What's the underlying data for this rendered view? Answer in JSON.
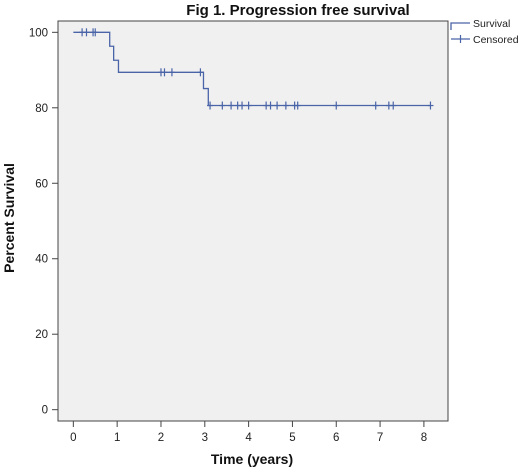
{
  "chart_data": {
    "type": "line",
    "title": "Fig 1. Progression free survival",
    "xlabel": "Time (years)",
    "ylabel": "Percent Survival",
    "xlim": [
      -0.35,
      8.55
    ],
    "ylim": [
      -3,
      103
    ],
    "xticks": [
      "0",
      "1",
      "2",
      "3",
      "4",
      "5",
      "6",
      "7",
      "8"
    ],
    "yticks": [
      "0",
      "20",
      "40",
      "60",
      "80",
      "100"
    ],
    "grid": false,
    "legend": {
      "position": "top-right, outside plot",
      "entries": [
        "Survival",
        "Censored"
      ]
    },
    "colors": {
      "series": "#4a64a8",
      "plot_background": "#f0f0f0",
      "axis": "#444444"
    },
    "series": [
      {
        "name": "Survival",
        "step": [
          [
            0,
            100
          ],
          [
            0.83,
            100
          ],
          [
            0.83,
            96.3
          ],
          [
            0.92,
            96.3
          ],
          [
            0.92,
            92.6
          ],
          [
            1.03,
            92.6
          ],
          [
            1.03,
            89.4
          ],
          [
            2.97,
            89.4
          ],
          [
            2.97,
            85.1
          ],
          [
            3.08,
            85.1
          ],
          [
            3.08,
            80.6
          ],
          [
            8.15,
            80.6
          ]
        ]
      },
      {
        "name": "Censored",
        "points": [
          [
            0.2,
            100
          ],
          [
            0.3,
            100
          ],
          [
            0.45,
            100
          ],
          [
            0.5,
            100
          ],
          [
            2.0,
            89.4
          ],
          [
            2.08,
            89.4
          ],
          [
            2.25,
            89.4
          ],
          [
            2.9,
            89.4
          ],
          [
            3.12,
            80.6
          ],
          [
            3.4,
            80.6
          ],
          [
            3.6,
            80.6
          ],
          [
            3.75,
            80.6
          ],
          [
            3.85,
            80.6
          ],
          [
            4.0,
            80.6
          ],
          [
            4.4,
            80.6
          ],
          [
            4.5,
            80.6
          ],
          [
            4.65,
            80.6
          ],
          [
            4.85,
            80.6
          ],
          [
            5.05,
            80.6
          ],
          [
            5.12,
            80.6
          ],
          [
            6.0,
            80.6
          ],
          [
            6.9,
            80.6
          ],
          [
            7.2,
            80.6
          ],
          [
            7.3,
            80.6
          ],
          [
            8.15,
            80.6
          ]
        ]
      }
    ]
  }
}
